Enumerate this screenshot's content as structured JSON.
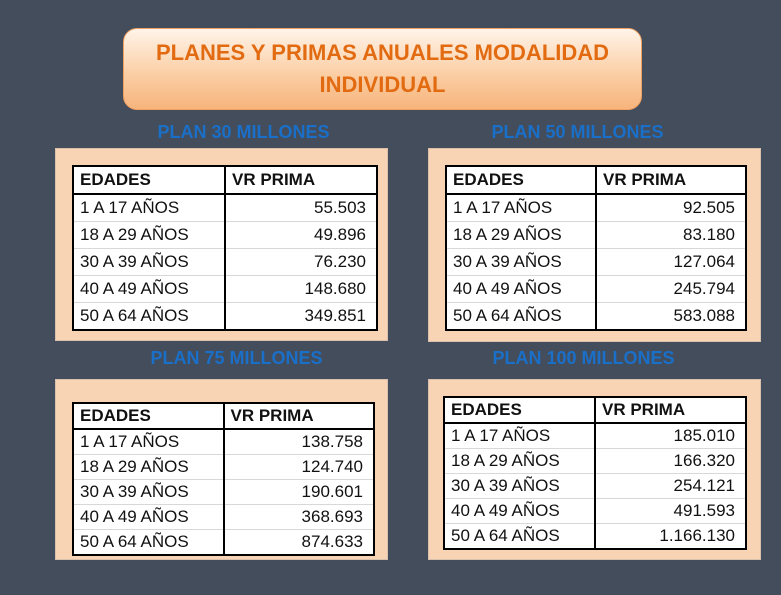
{
  "header": {
    "title": "PLANES Y PRIMAS ANUALES MODALIDAD INDIVIDUAL"
  },
  "columns": [
    "EDADES",
    "VR PRIMA"
  ],
  "plans": [
    {
      "title": "PLAN 30 MILLONES",
      "rows": [
        [
          "1 A 17 AÑOS",
          "55.503"
        ],
        [
          "18 A 29 AÑOS",
          "49.896"
        ],
        [
          "30 A 39 AÑOS",
          "76.230"
        ],
        [
          "40 A 49 AÑOS",
          "148.680"
        ],
        [
          "50 A 64 AÑOS",
          "349.851"
        ]
      ]
    },
    {
      "title": "PLAN 50 MILLONES",
      "rows": [
        [
          "1 A 17 AÑOS",
          "92.505"
        ],
        [
          "18 A 29 AÑOS",
          "83.180"
        ],
        [
          "30 A 39 AÑOS",
          "127.064"
        ],
        [
          "40 A 49 AÑOS",
          "245.794"
        ],
        [
          "50 A 64 AÑOS",
          "583.088"
        ]
      ]
    },
    {
      "title": "PLAN 75 MILLONES",
      "rows": [
        [
          "1 A 17 AÑOS",
          "138.758"
        ],
        [
          "18 A 29 AÑOS",
          "124.740"
        ],
        [
          "30 A 39 AÑOS",
          "190.601"
        ],
        [
          "40 A 49 AÑOS",
          "368.693"
        ],
        [
          "50 A 64 AÑOS",
          "874.633"
        ]
      ]
    },
    {
      "title": "PLAN 100 MILLONES",
      "rows": [
        [
          "1 A 17 AÑOS",
          "185.010"
        ],
        [
          "18 A 29 AÑOS",
          "166.320"
        ],
        [
          "30 A 39 AÑOS",
          "254.121"
        ],
        [
          "40 A 49 AÑOS",
          "491.593"
        ],
        [
          "50 A 64 AÑOS",
          "1.166.130"
        ]
      ]
    }
  ]
}
